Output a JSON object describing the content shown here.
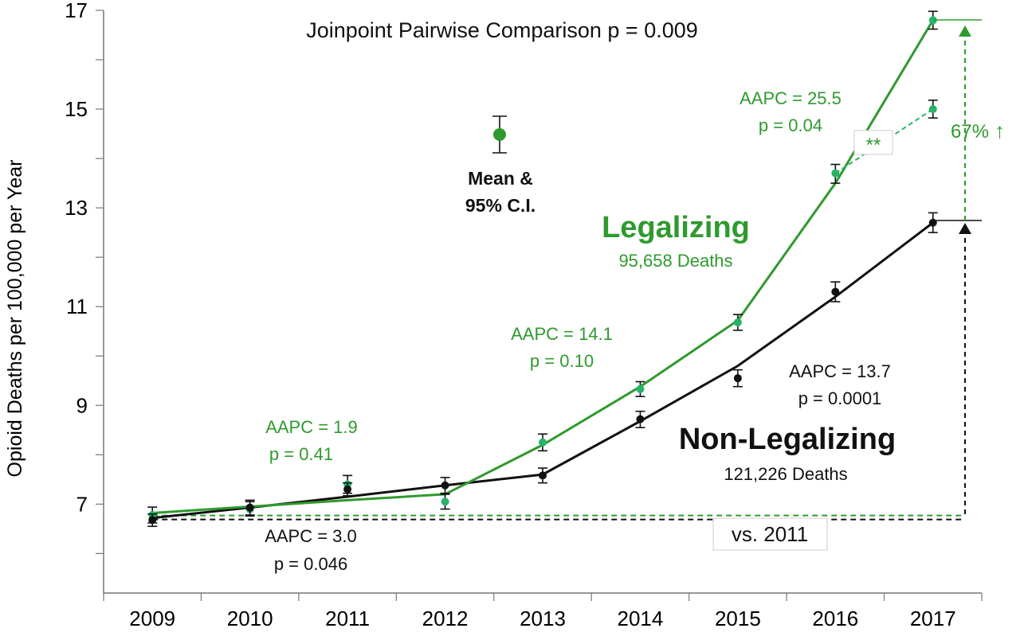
{
  "chart_data": {
    "type": "line",
    "title": "Joinpoint Pairwise Comparison p = 0.009",
    "ylabel": "Opioid Deaths per 100,000  per Year",
    "xlabel": "",
    "ylim": [
      5.2,
      17
    ],
    "yticks": [
      7,
      9,
      11,
      13,
      15,
      17
    ],
    "x": [
      "2009",
      "2010",
      "2011",
      "2012",
      "2013",
      "2014",
      "2015",
      "2016",
      "2017"
    ],
    "series": [
      {
        "name": "Legalizing",
        "color": "#2e9a2e",
        "point_color": "#27b36a",
        "observed": [
          6.78,
          6.9,
          7.4,
          7.05,
          8.25,
          9.33,
          10.68,
          13.7,
          16.8
        ],
        "ci_low": [
          6.62,
          6.76,
          7.22,
          6.9,
          8.08,
          9.18,
          10.52,
          13.5,
          16.62
        ],
        "ci_high": [
          6.94,
          7.05,
          7.58,
          7.2,
          8.42,
          9.48,
          10.84,
          13.88,
          16.98
        ],
        "fitted": [
          6.82,
          6.95,
          7.08,
          7.2,
          8.2,
          9.38,
          10.72,
          13.5,
          16.8
        ],
        "extra_point": {
          "x": "2017",
          "value": 15.0,
          "ci_low": 14.82,
          "ci_high": 15.18
        }
      },
      {
        "name": "Non-Legalizing",
        "color": "#111111",
        "point_color": "#111111",
        "observed": [
          6.68,
          6.93,
          7.3,
          7.38,
          7.58,
          8.72,
          9.55,
          11.3,
          12.7
        ],
        "ci_low": [
          6.55,
          6.78,
          7.17,
          7.22,
          7.43,
          8.55,
          9.38,
          11.1,
          12.5
        ],
        "ci_high": [
          6.8,
          7.08,
          7.43,
          7.54,
          7.73,
          8.88,
          9.72,
          11.5,
          12.9
        ],
        "fitted": [
          6.72,
          6.93,
          7.15,
          7.38,
          7.6,
          8.68,
          9.8,
          11.2,
          12.7
        ]
      }
    ],
    "legalizing": {
      "label": "Legalizing",
      "deaths": "95,658 Deaths"
    },
    "non_legalizing": {
      "label": "Non-Legalizing",
      "deaths": "121,226 Deaths"
    },
    "legend_mean": {
      "line1": "Mean &",
      "line2": "95% C.I."
    },
    "annotations": {
      "aapc_green_1": {
        "line1": "AAPC = 1.9",
        "line2": "p = 0.41"
      },
      "aapc_green_2": {
        "line1": "AAPC = 14.1",
        "line2": "p = 0.10"
      },
      "aapc_green_3": {
        "line1": "AAPC = 25.5",
        "line2": "p = 0.04"
      },
      "aapc_black_1": {
        "line1": "AAPC = 3.0",
        "line2": "p = 0.046"
      },
      "aapc_black_2": {
        "line1": "AAPC = 13.7",
        "line2": "p = 0.0001"
      },
      "increase": "67%",
      "increase_arrow": "↑",
      "significance": "**",
      "baseline": "vs. 2011"
    }
  }
}
